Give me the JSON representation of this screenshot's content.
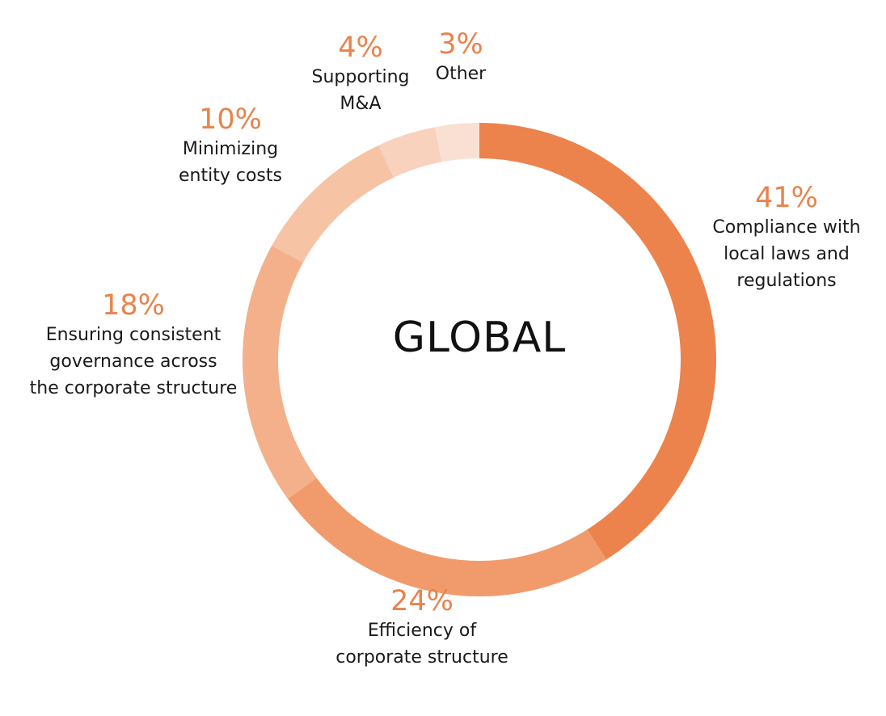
{
  "chart_data": {
    "type": "pie",
    "variant": "donut",
    "center_label": "GLOBAL",
    "start_angle_deg": 0,
    "direction": "clockwise",
    "slices": [
      {
        "value": 41,
        "percent_label": "41%",
        "label": "Compliance with\nlocal laws and\nregulations",
        "color": "#ec834c"
      },
      {
        "value": 24,
        "percent_label": "24%",
        "label": "Efficiency of\ncorporate structure",
        "color": "#f19b6c"
      },
      {
        "value": 18,
        "percent_label": "18%",
        "label": "Ensuring consistent\ngovernance across\nthe corporate structure",
        "color": "#f4b08a"
      },
      {
        "value": 10,
        "percent_label": "10%",
        "label": "Minimizing\nentity costs",
        "color": "#f6c3a5"
      },
      {
        "value": 4,
        "percent_label": "4%",
        "label": "Supporting\nM&A",
        "color": "#f8d2bd"
      },
      {
        "value": 3,
        "percent_label": "3%",
        "label": "Other",
        "color": "#fae0d2"
      }
    ]
  },
  "colors": {
    "accent": "#e8834c",
    "text": "#1a1a1a"
  }
}
